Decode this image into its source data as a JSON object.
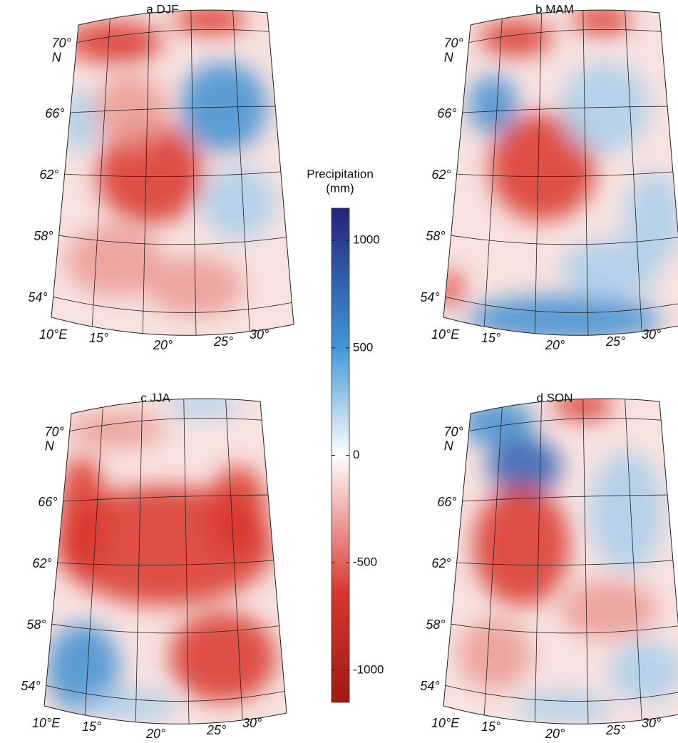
{
  "panels": [
    {
      "title": "a  DJF",
      "north": "N",
      "lat_labels": [
        "70°",
        "66°",
        "62°",
        "58°",
        "54°"
      ],
      "lon_labels": [
        "10°E",
        "15°",
        "20°",
        "25°",
        "30°"
      ]
    },
    {
      "title": "b  MAM",
      "north": "N",
      "lat_labels": [
        "70°",
        "66°",
        "62°",
        "58°",
        "54°"
      ],
      "lon_labels": [
        "10°E",
        "15°",
        "20°",
        "25°",
        "30°"
      ]
    },
    {
      "title": "c  JJA",
      "north": "N",
      "lat_labels": [
        "70°",
        "66°",
        "62°",
        "58°",
        "54°"
      ],
      "lon_labels": [
        "10°E",
        "15°",
        "20°",
        "25°",
        "30°"
      ]
    },
    {
      "title": "d  SON",
      "north": "N",
      "lat_labels": [
        "70°",
        "66°",
        "62°",
        "58°",
        "54°"
      ],
      "lon_labels": [
        "10°E",
        "15°",
        "20°",
        "25°",
        "30°"
      ]
    }
  ],
  "colorbar": {
    "title": "Precipitation",
    "unit": "(mm)",
    "lim": [
      -1150,
      1150
    ],
    "ticks": [
      1000,
      500,
      0,
      -500,
      -1000
    ]
  }
}
